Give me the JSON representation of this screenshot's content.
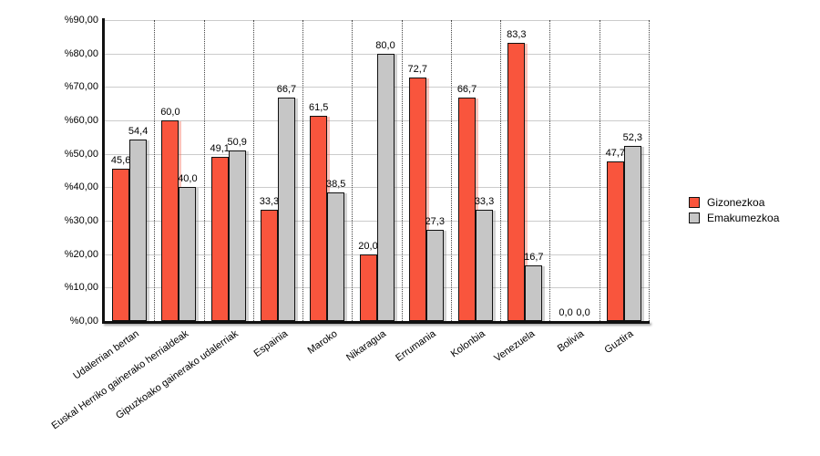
{
  "chart_data": {
    "type": "bar",
    "title": "",
    "categories": [
      "Udalerrian bertan",
      "Euskal Herriko gainerako herrialdeak",
      "Gipuzkoako gainerako udalerriak",
      "Espainia",
      "Maroko",
      "Nikaragua",
      "Errumania",
      "Kolonbia",
      "Venezuela",
      "Bolivia",
      "Guztira"
    ],
    "series": [
      {
        "name": "Gizonezkoa",
        "color": "#F9553D",
        "shadow_color": "rgba(249,85,61,0.35)",
        "values": [
          45.6,
          60.0,
          49.1,
          33.3,
          61.5,
          20.0,
          72.7,
          66.7,
          83.3,
          0.0,
          47.7
        ],
        "value_labels": [
          "45,6",
          "60,0",
          "49,1",
          "33,3",
          "61,5",
          "20,0",
          "72,7",
          "66,7",
          "83,3",
          "0,0",
          "47,7"
        ]
      },
      {
        "name": "Emakumezkoa",
        "color": "#C6C6C6",
        "shadow_color": "rgba(110,110,110,0.3)",
        "values": [
          54.4,
          40.0,
          50.9,
          66.7,
          38.5,
          80.0,
          27.3,
          33.3,
          16.7,
          0.0,
          52.3
        ],
        "value_labels": [
          "54,4",
          "40,0",
          "50,9",
          "66,7",
          "38,5",
          "80,0",
          "27,3",
          "33,3",
          "16,7",
          "0,0",
          "52,3"
        ]
      }
    ],
    "y_axis": {
      "min": 0,
      "max": 90,
      "step": 10,
      "tick_labels": [
        "%0,00",
        "%10,00",
        "%20,00",
        "%30,00",
        "%40,00",
        "%50,00",
        "%60,00",
        "%70,00",
        "%80,00",
        "%90,00"
      ]
    },
    "legend": {
      "position": "right",
      "entries": [
        "Gizonezkoa",
        "Emakumezkoa"
      ]
    },
    "grid": {
      "horizontal": "solid",
      "vertical": "dotted"
    }
  }
}
